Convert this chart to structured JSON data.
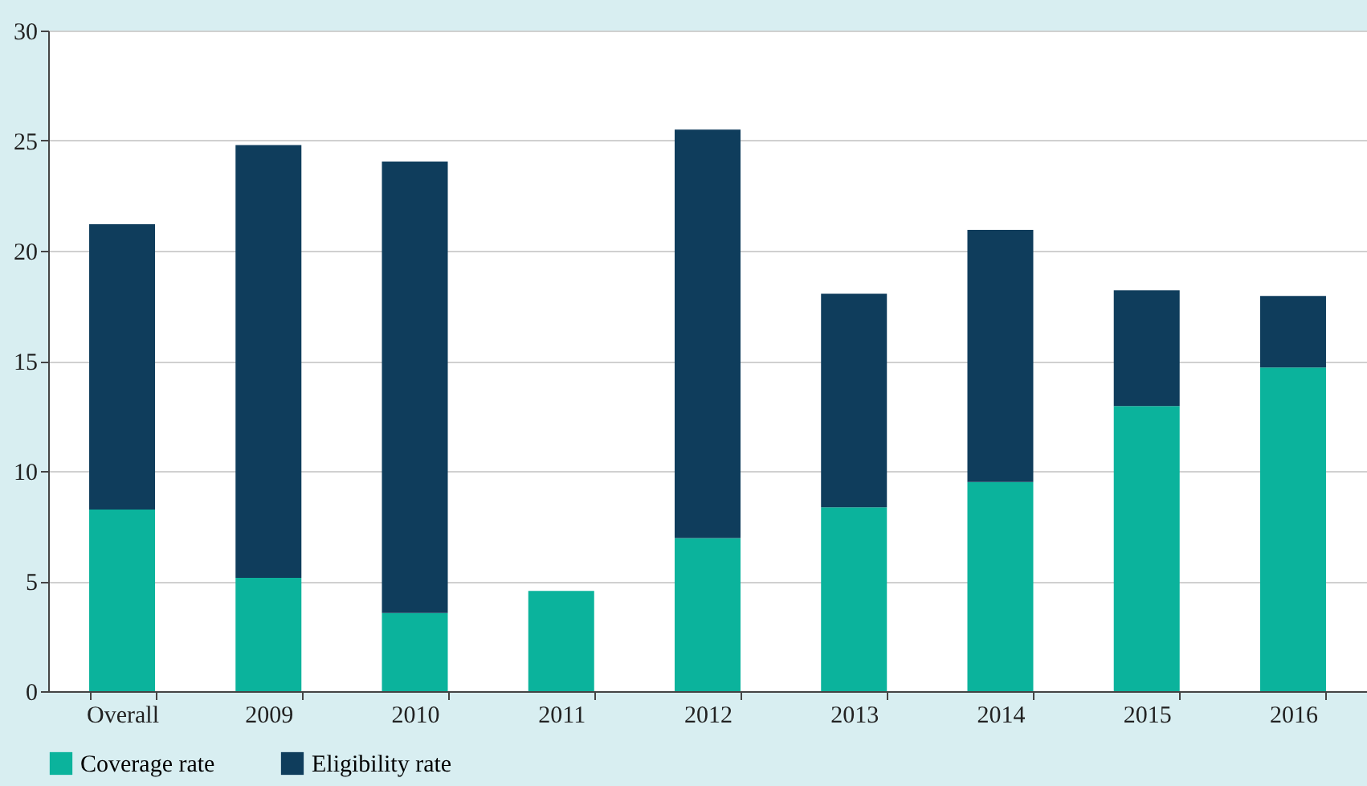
{
  "chart_data": {
    "type": "bar",
    "stacked": true,
    "categories": [
      "Overall",
      "2009",
      "2010",
      "2011",
      "2012",
      "2013",
      "2014",
      "2015",
      "2016"
    ],
    "series": [
      {
        "name": "Coverage rate",
        "color": "#0bb39c",
        "values": [
          8.25,
          5.15,
          3.55,
          4.55,
          6.95,
          8.35,
          9.5,
          12.95,
          14.7
        ]
      },
      {
        "name": "Eligibility rate",
        "color": "#0f3d5c",
        "values": [
          12.95,
          19.65,
          20.5,
          null,
          18.55,
          9.7,
          11.45,
          5.25,
          3.25
        ]
      }
    ],
    "ylim": [
      0,
      30
    ],
    "yticks": [
      0,
      5,
      10,
      15,
      20,
      25,
      30
    ],
    "grid": "y",
    "legend": "bottom"
  }
}
